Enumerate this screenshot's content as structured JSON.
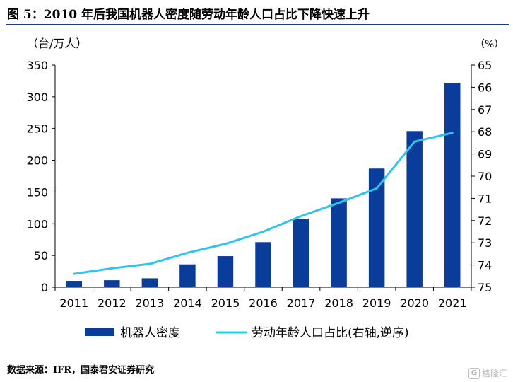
{
  "title": "图 5：2010 年后我国机器人密度随劳动年龄人口占比下降快速上升",
  "source": "数据来源：IFR，国泰君安证券研究",
  "watermark": {
    "text": "格隆汇",
    "logo": "G"
  },
  "colors": {
    "bar": "#0a3d99",
    "line": "#2ec4f0",
    "axis": "#000000"
  },
  "chart_data": {
    "type": "bar+line",
    "categories": [
      "2011",
      "2012",
      "2013",
      "2014",
      "2015",
      "2016",
      "2017",
      "2018",
      "2019",
      "2020",
      "2021"
    ],
    "series": [
      {
        "name": "机器人密度",
        "type": "bar",
        "axis": "left",
        "values": [
          10,
          11,
          14,
          36,
          49,
          71,
          108,
          140,
          187,
          246,
          322
        ]
      },
      {
        "name": "劳动年龄人口占比(右轴,逆序)",
        "type": "line",
        "axis": "right",
        "values": [
          74.4,
          74.15,
          73.95,
          73.45,
          73.05,
          72.5,
          71.8,
          71.2,
          70.55,
          68.45,
          68.05
        ]
      }
    ],
    "y_left": {
      "unit": "（台/万人）",
      "min": 0,
      "max": 350,
      "step": 50,
      "ticks": [
        "0",
        "50",
        "100",
        "150",
        "200",
        "250",
        "300",
        "350"
      ]
    },
    "y_right": {
      "unit": "（%）",
      "min": 65,
      "max": 75,
      "step": 1,
      "reversed": true,
      "ticks": [
        "65",
        "66",
        "67",
        "68",
        "69",
        "70",
        "71",
        "72",
        "73",
        "74",
        "75"
      ]
    },
    "legend": {
      "position": "bottom"
    },
    "grid": false
  }
}
